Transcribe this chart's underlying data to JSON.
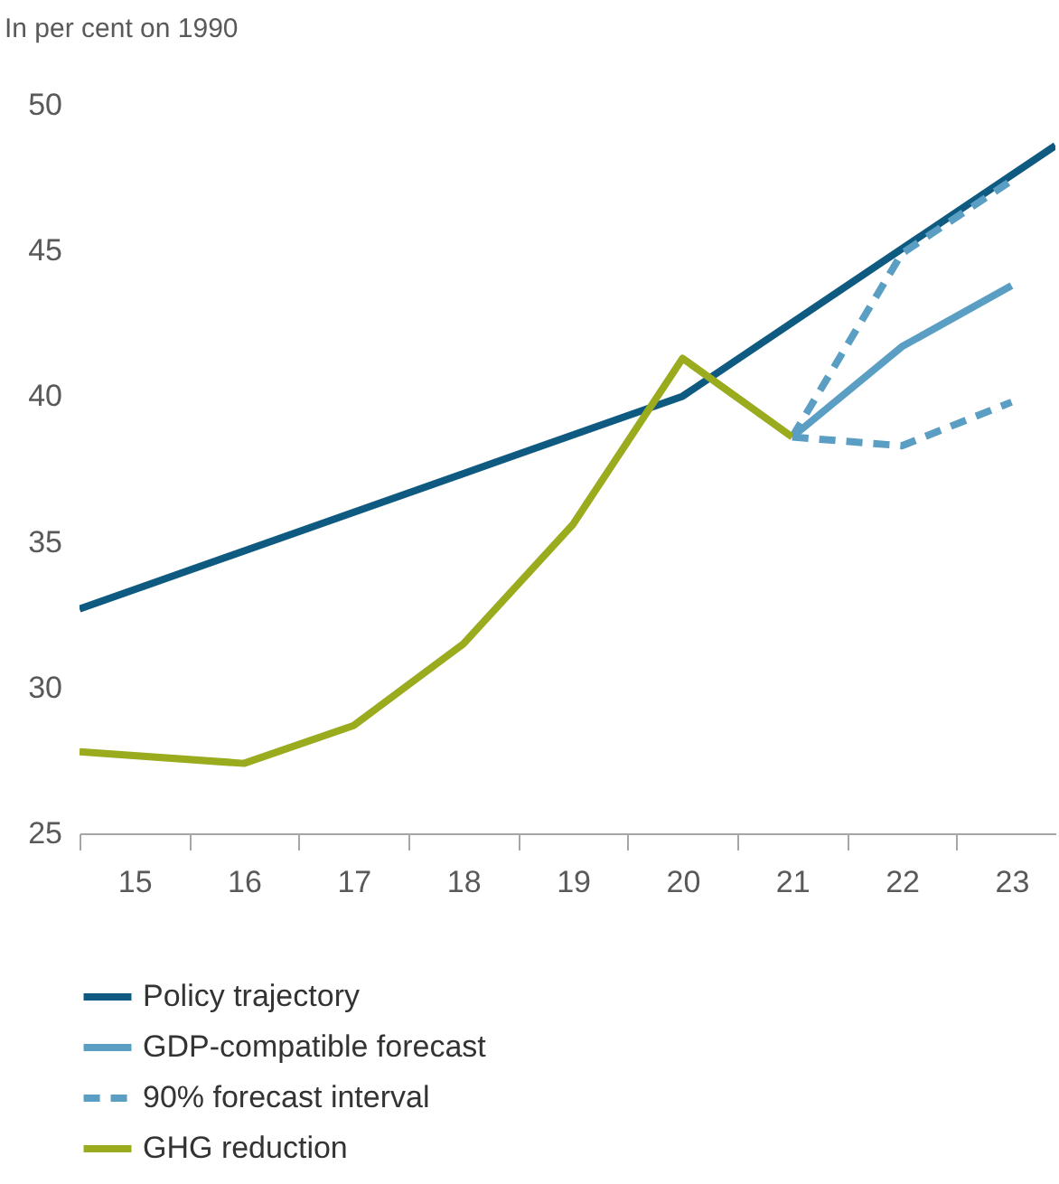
{
  "chart_data": {
    "type": "line",
    "ylabel": "In per cent on 1990",
    "xlim": [
      14.5,
      23.4
    ],
    "ylim": [
      25,
      50
    ],
    "yticks": [
      25,
      30,
      35,
      40,
      45,
      50
    ],
    "xticks": [
      {
        "value": 14.5,
        "label": null
      },
      15,
      {
        "value": 15.5,
        "label": null
      },
      16,
      {
        "value": 16.5,
        "label": null
      },
      17,
      {
        "value": 17.5,
        "label": null
      },
      18,
      {
        "value": 18.5,
        "label": null
      },
      19,
      {
        "value": 19.5,
        "label": null
      },
      20,
      {
        "value": 20.5,
        "label": null
      },
      21,
      {
        "value": 21.5,
        "label": null
      },
      22,
      {
        "value": 22.5,
        "label": null
      },
      23
    ],
    "legend": "bottom",
    "grid": false,
    "marker": "none",
    "series": [
      {
        "name": "Policy trajectory",
        "color": "#0e5a80",
        "line_style": "solid",
        "x": [
          14.5,
          20,
          23.4
        ],
        "values": [
          32.7,
          40.0,
          48.6
        ]
      },
      {
        "name": "GDP-compatible forecast",
        "color": "#5a9ec4",
        "line_style": "solid",
        "x": [
          21,
          22,
          23
        ],
        "values": [
          38.6,
          41.7,
          43.8
        ]
      },
      {
        "name": "90% forecast interval",
        "color": "#5a9ec4",
        "line_style": "dashed",
        "x": [
          21,
          22,
          23
        ],
        "values": [
          38.6,
          44.9,
          47.4
        ]
      },
      {
        "name": "GHG reduction",
        "color": "#9aab1e",
        "line_style": "solid",
        "x": [
          14.5,
          16,
          17,
          18,
          19,
          20,
          21
        ],
        "values": [
          27.8,
          27.4,
          28.7,
          31.5,
          35.6,
          41.3,
          38.6
        ]
      },
      {
        "color": "#5a9ec4",
        "line_style": "dashed",
        "x": [
          21,
          22,
          23
        ],
        "values": [
          38.6,
          38.3,
          39.8
        ]
      }
    ]
  }
}
